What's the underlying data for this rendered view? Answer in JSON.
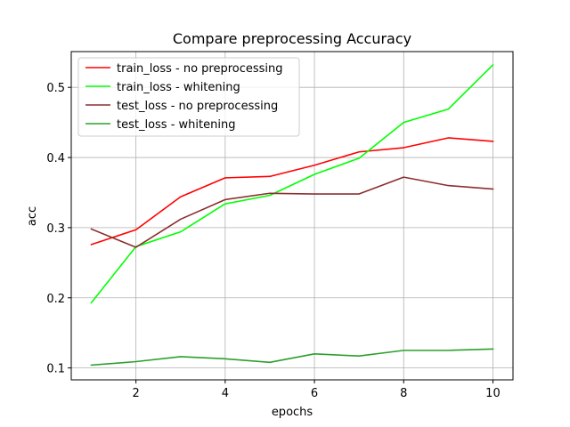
{
  "chart_data": {
    "type": "line",
    "title": "Compare preprocessing Accuracy",
    "xlabel": "epochs",
    "ylabel": "acc",
    "xlim": [
      0.55,
      10.45
    ],
    "ylim": [
      0.083,
      0.551
    ],
    "xticks": [
      2,
      4,
      6,
      8,
      10
    ],
    "yticks": [
      0.1,
      0.2,
      0.3,
      0.4,
      0.5
    ],
    "ytick_labels": [
      "0.1",
      "0.2",
      "0.3",
      "0.4",
      "0.5"
    ],
    "grid": true,
    "legend_position": "upper-left",
    "x": [
      1,
      2,
      3,
      4,
      5,
      6,
      7,
      8,
      9,
      10
    ],
    "series": [
      {
        "name": "train_loss - no preprocessing",
        "color": "#ff0000",
        "values": [
          0.276,
          0.297,
          0.344,
          0.371,
          0.373,
          0.389,
          0.408,
          0.414,
          0.428,
          0.423
        ]
      },
      {
        "name": "train_loss - whitening",
        "color": "#00ff00",
        "values": [
          0.193,
          0.273,
          0.294,
          0.334,
          0.346,
          0.376,
          0.399,
          0.45,
          0.469,
          0.532
        ]
      },
      {
        "name": "test_loss - no preprocessing",
        "color": "#8b2e2e",
        "values": [
          0.298,
          0.272,
          0.312,
          0.34,
          0.349,
          0.348,
          0.348,
          0.372,
          0.36,
          0.355
        ]
      },
      {
        "name": "test_loss - whitening",
        "color": "#2ca02c",
        "values": [
          0.104,
          0.109,
          0.116,
          0.113,
          0.108,
          0.12,
          0.117,
          0.125,
          0.125,
          0.127
        ]
      }
    ]
  }
}
